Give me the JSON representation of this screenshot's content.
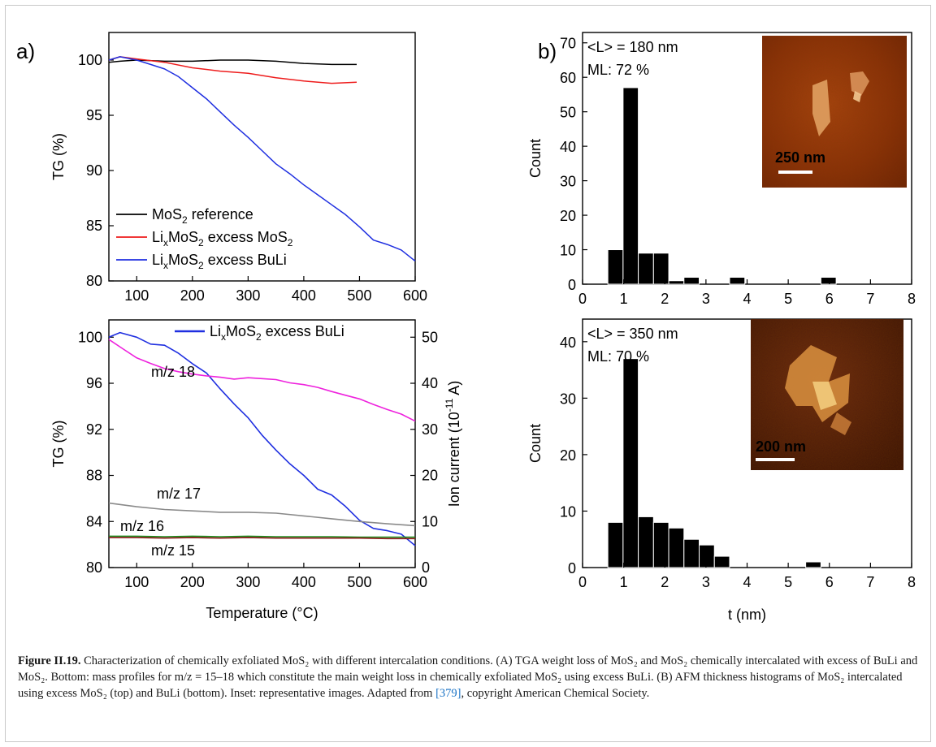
{
  "panels": {
    "a": "a)",
    "b": "b)"
  },
  "caption": {
    "label": "Figure II.19.",
    "text": "Characterization of chemically exfoliated MoS₂ with different intercalation conditions. (A) TGA weight loss of MoS₂ and MoS₂ chemically intercalated with excess of BuLi and MoS₂. Bottom: mass profiles for m/z = 15–18 which constitute the main weight loss in chemically exfoliated MoS₂ using excess BuLi. (B) AFM thickness histograms of MoS₂ intercalated using excess MoS₂ (top) and BuLi (bottom). Inset: representative images. Adapted from ",
    "citation": "[379]",
    "suffix": ", copyright American Chemical Society."
  },
  "chart_data": [
    {
      "type": "line",
      "panel": "a-top",
      "xlabel": "",
      "ylabel": "TG (%)",
      "xlim": [
        50,
        600
      ],
      "ylim": [
        80,
        102.5
      ],
      "xticks": [
        100,
        200,
        300,
        400,
        500,
        600
      ],
      "yticks": [
        80,
        85,
        90,
        95,
        100
      ],
      "legend_position": "bottom-left",
      "series": [
        {
          "name": "MoS₂ reference",
          "color": "#000000",
          "x": [
            50,
            70,
            100,
            150,
            200,
            250,
            300,
            350,
            400,
            450,
            495
          ],
          "y": [
            99.8,
            99.9,
            100.0,
            99.9,
            99.9,
            100.0,
            100.0,
            99.9,
            99.7,
            99.6,
            99.6
          ]
        },
        {
          "name": "LiₓMoS₂  excess MoS₂",
          "color": "#ee1c1c",
          "x": [
            50,
            70,
            100,
            150,
            200,
            250,
            300,
            350,
            400,
            450,
            495
          ],
          "y": [
            100.0,
            100.3,
            100.1,
            99.8,
            99.3,
            99.0,
            98.8,
            98.4,
            98.1,
            97.9,
            98.0
          ]
        },
        {
          "name": "LiₓMoS₂  excess BuLi",
          "color": "#1f2fe0",
          "x": [
            50,
            70,
            100,
            125,
            150,
            175,
            200,
            225,
            250,
            275,
            300,
            325,
            350,
            375,
            400,
            425,
            450,
            475,
            500,
            525,
            550,
            575,
            600
          ],
          "y": [
            100.0,
            100.3,
            100.0,
            99.6,
            99.2,
            98.5,
            97.5,
            96.5,
            95.3,
            94.1,
            93.0,
            91.8,
            90.6,
            89.7,
            88.7,
            87.8,
            86.9,
            86.0,
            84.9,
            83.7,
            83.3,
            82.8,
            81.8
          ]
        }
      ]
    },
    {
      "type": "line",
      "panel": "a-bottom",
      "xlabel": "Temperature (°C)",
      "ylabel": "TG (%)",
      "y2label": "Ion current (10⁻¹¹ A)",
      "xlim": [
        50,
        600
      ],
      "ylim": [
        80,
        101.5
      ],
      "y2lim": [
        0,
        53.75
      ],
      "xticks": [
        100,
        200,
        300,
        400,
        500,
        600
      ],
      "yticks": [
        80,
        84,
        88,
        92,
        96,
        100
      ],
      "y2ticks": [
        0,
        10,
        20,
        30,
        40,
        50
      ],
      "legend_position": "top-right",
      "series": [
        {
          "name": "LiₓMoS₂ excess BuLi",
          "color": "#1f2fe0",
          "axis": "left",
          "x": [
            50,
            70,
            100,
            125,
            150,
            175,
            200,
            225,
            250,
            275,
            300,
            325,
            350,
            375,
            400,
            425,
            450,
            475,
            500,
            525,
            550,
            575,
            600
          ],
          "y": [
            100.0,
            100.4,
            100.0,
            99.4,
            99.3,
            98.6,
            97.7,
            96.9,
            95.5,
            94.2,
            93.0,
            91.5,
            90.2,
            89.0,
            88.0,
            86.8,
            86.3,
            85.3,
            84.1,
            83.4,
            83.2,
            82.9,
            81.9
          ]
        },
        {
          "name": "m/z 18",
          "color": "#ee22dd",
          "axis": "right",
          "x": [
            50,
            75,
            100,
            125,
            150,
            175,
            200,
            225,
            250,
            275,
            300,
            325,
            350,
            375,
            400,
            425,
            450,
            475,
            500,
            525,
            550,
            575,
            600
          ],
          "y": [
            49.5,
            47.5,
            45.5,
            44.3,
            43.2,
            42.5,
            42.0,
            41.6,
            41.3,
            40.9,
            41.2,
            41.0,
            40.8,
            40.1,
            39.7,
            39.1,
            38.2,
            37.4,
            36.6,
            35.4,
            34.3,
            33.3,
            31.8
          ]
        },
        {
          "name": "m/z 17",
          "color": "#8a8a8a",
          "axis": "right",
          "x": [
            50,
            100,
            150,
            200,
            250,
            300,
            350,
            400,
            450,
            500,
            550,
            600
          ],
          "y": [
            14.0,
            13.2,
            12.6,
            12.3,
            12.0,
            12.0,
            11.8,
            11.2,
            10.6,
            10.0,
            9.5,
            9.1
          ]
        },
        {
          "name": "m/z 16",
          "color": "#1b8c1b",
          "axis": "right",
          "x": [
            50,
            100,
            150,
            200,
            250,
            300,
            350,
            400,
            450,
            500,
            550,
            600
          ],
          "y": [
            6.8,
            6.8,
            6.7,
            6.8,
            6.7,
            6.8,
            6.7,
            6.7,
            6.7,
            6.6,
            6.6,
            6.6
          ]
        },
        {
          "name": "m/z 15",
          "color": "#8b1a1a",
          "axis": "right",
          "x": [
            50,
            100,
            150,
            200,
            250,
            300,
            350,
            400,
            450,
            500,
            550,
            600
          ],
          "y": [
            6.5,
            6.5,
            6.4,
            6.5,
            6.4,
            6.5,
            6.4,
            6.4,
            6.4,
            6.4,
            6.3,
            6.3
          ]
        }
      ]
    },
    {
      "type": "bar",
      "panel": "b-top",
      "xlabel": "",
      "ylabel": "Count",
      "xlim": [
        0,
        8
      ],
      "ylim": [
        0,
        73
      ],
      "xticks": [
        0,
        1,
        2,
        3,
        4,
        5,
        6,
        7,
        8
      ],
      "yticks": [
        0,
        10,
        20,
        30,
        40,
        50,
        60,
        70
      ],
      "bin_width": 0.37,
      "bin_centers": [
        0.8,
        1.17,
        1.54,
        1.91,
        2.28,
        2.65,
        3.02,
        3.39,
        3.76,
        4.13,
        4.5,
        4.87,
        5.24,
        5.61,
        5.98,
        6.35
      ],
      "values": [
        10,
        57,
        9,
        9,
        1,
        2,
        0,
        0,
        2,
        0,
        0,
        0,
        0,
        0,
        2,
        0
      ],
      "annotations": [
        "<L> = 180 nm",
        "ML: 72 %"
      ],
      "inset": {
        "scale_label": "250 nm"
      }
    },
    {
      "type": "bar",
      "panel": "b-bottom",
      "xlabel": "t (nm)",
      "ylabel": "Count",
      "xlim": [
        0,
        8
      ],
      "ylim": [
        0,
        44
      ],
      "xticks": [
        0,
        1,
        2,
        3,
        4,
        5,
        6,
        7,
        8
      ],
      "yticks": [
        0,
        10,
        20,
        30,
        40
      ],
      "bin_width": 0.37,
      "bin_centers": [
        0.8,
        1.17,
        1.54,
        1.91,
        2.28,
        2.65,
        3.02,
        3.39,
        3.76,
        4.13,
        4.5,
        4.87,
        5.24,
        5.61,
        5.98
      ],
      "values": [
        8,
        37,
        9,
        8,
        7,
        5,
        4,
        2,
        0,
        0,
        0,
        0,
        0,
        1,
        0
      ],
      "annotations": [
        "<L> = 350 nm",
        "ML: 70 %"
      ],
      "inset": {
        "scale_label": "200 nm"
      }
    }
  ]
}
